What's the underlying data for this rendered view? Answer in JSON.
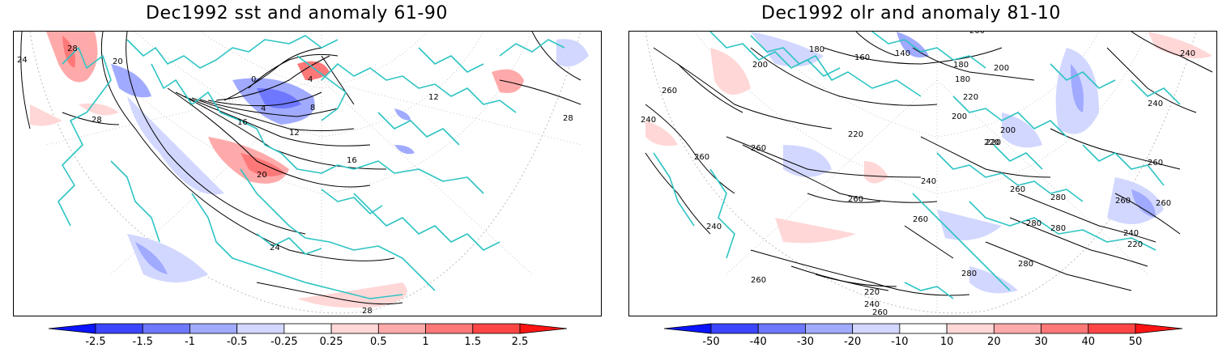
{
  "panels": [
    {
      "title": "Dec1992 sst and anomaly 61-90",
      "contour_labels": [
        "24",
        "28",
        "20",
        "0",
        "4",
        "4",
        "8",
        "12",
        "16",
        "16",
        "20",
        "24",
        "28",
        "28",
        "28",
        "12"
      ],
      "colorbar": {
        "ticks": [
          "-2.5",
          "-1.5",
          "-1",
          "-0.5",
          "-0.25",
          "0.25",
          "0.5",
          "1",
          "1.5",
          "2.5"
        ],
        "colors": [
          "#0a14ff",
          "#3c46ff",
          "#6e78ff",
          "#a0aaff",
          "#d2d7ff",
          "#ffffff",
          "#ffd7d7",
          "#ffaaaa",
          "#ff7878",
          "#ff4646",
          "#ff1414"
        ]
      }
    },
    {
      "title": "Dec1992 olr and anomaly 81-10",
      "contour_labels": [
        "200",
        "180",
        "160",
        "140",
        "180",
        "180",
        "220",
        "200",
        "260",
        "240",
        "260",
        "220",
        "260",
        "200",
        "200",
        "200",
        "220",
        "260",
        "280",
        "240",
        "260",
        "240",
        "220",
        "260",
        "240",
        "260",
        "260",
        "280",
        "260",
        "280",
        "240",
        "220",
        "280",
        "280",
        "240",
        "260",
        "220",
        "240",
        "260"
      ],
      "colorbar": {
        "ticks": [
          "-50",
          "-40",
          "-30",
          "-20",
          "-10",
          "10",
          "20",
          "30",
          "40",
          "50"
        ],
        "colors": [
          "#0a14ff",
          "#3c46ff",
          "#6e78ff",
          "#a0aaff",
          "#d2d7ff",
          "#ffffff",
          "#ffd7d7",
          "#ffaaaa",
          "#ff7878",
          "#ff4646",
          "#ff1414"
        ]
      }
    }
  ]
}
